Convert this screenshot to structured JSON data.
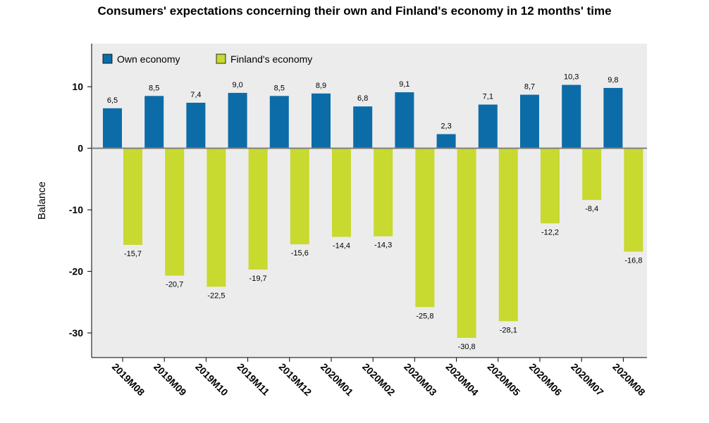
{
  "chart_data": {
    "type": "bar",
    "title": "Consumers' expectations concerning their own and Finland's economy in 12 months' time",
    "xlabel": "",
    "ylabel": "Balance",
    "ylim": [
      -34,
      17
    ],
    "yticks": [
      10,
      0,
      -10,
      -20,
      -30
    ],
    "grid": false,
    "legend": "top-left",
    "categories": [
      "2019M08",
      "2019M09",
      "2019M10",
      "2019M11",
      "2019M12",
      "2020M01",
      "2020M02",
      "2020M03",
      "2020M04",
      "2020M05",
      "2020M06",
      "2020M07",
      "2020M08"
    ],
    "series": [
      {
        "name": "Own economy",
        "color": "#0c6ca8",
        "values": [
          6.5,
          8.5,
          7.4,
          9.0,
          8.5,
          8.9,
          6.8,
          9.1,
          2.3,
          7.1,
          8.7,
          10.3,
          9.8
        ],
        "labels": [
          "6,5",
          "8,5",
          "7,4",
          "9,0",
          "8,5",
          "8,9",
          "6,8",
          "9,1",
          "2,3",
          "7,1",
          "8,7",
          "10,3",
          "9,8"
        ]
      },
      {
        "name": "Finland's economy",
        "color": "#c8d930",
        "values": [
          -15.7,
          -20.7,
          -22.5,
          -19.7,
          -15.6,
          -14.4,
          -14.3,
          -25.8,
          -30.8,
          -28.1,
          -12.2,
          -8.4,
          -16.8
        ],
        "labels": [
          "-15,7",
          "-20,7",
          "-22,5",
          "-19,7",
          "-15,6",
          "-14,4",
          "-14,3",
          "-25,8",
          "-30,8",
          "-28,1",
          "-12,2",
          "-8,4",
          "-16,8"
        ]
      }
    ]
  }
}
